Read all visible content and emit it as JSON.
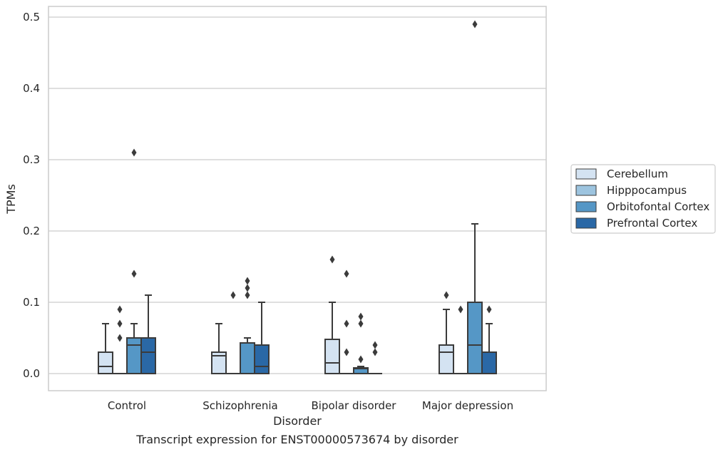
{
  "caption": "Transcript expression for ENST00000573674 by disorder",
  "chart_data": {
    "type": "box",
    "xlabel": "Disorder",
    "ylabel": "TPMs",
    "ylim": [
      -0.024,
      0.515
    ],
    "yticks": [
      0.0,
      0.1,
      0.2,
      0.3,
      0.4,
      0.5
    ],
    "ytick_labels": [
      "0.0",
      "0.1",
      "0.2",
      "0.3",
      "0.4",
      "0.5"
    ],
    "grid": "horizontal",
    "legend_position": "right",
    "categories": [
      "Control",
      "Schizophrenia",
      "Bipolar disorder",
      "Major depression"
    ],
    "series": [
      {
        "name": "Cerebellum",
        "color": "#d4e3f2",
        "boxes": [
          {
            "whislo": 0.0,
            "q1": 0.0,
            "med": 0.01,
            "q3": 0.03,
            "whishi": 0.07,
            "fliers": []
          },
          {
            "whislo": 0.0,
            "q1": 0.0,
            "med": 0.025,
            "q3": 0.03,
            "whishi": 0.07,
            "fliers": []
          },
          {
            "whislo": 0.0,
            "q1": 0.0,
            "med": 0.015,
            "q3": 0.048,
            "whishi": 0.1,
            "fliers": [
              0.16
            ]
          },
          {
            "whislo": 0.0,
            "q1": 0.0,
            "med": 0.03,
            "q3": 0.04,
            "whishi": 0.09,
            "fliers": [
              0.11
            ]
          }
        ]
      },
      {
        "name": "Hipppocampus",
        "color": "#9dc4df",
        "boxes": [
          {
            "whislo": 0.0,
            "q1": 0.0,
            "med": 0.0,
            "q3": 0.0,
            "whishi": 0.0,
            "fliers": [
              0.05,
              0.07,
              0.09
            ]
          },
          {
            "whislo": 0.0,
            "q1": 0.0,
            "med": 0.0,
            "q3": 0.0,
            "whishi": 0.0,
            "fliers": [
              0.11
            ]
          },
          {
            "whislo": 0.0,
            "q1": 0.0,
            "med": 0.0,
            "q3": 0.0,
            "whishi": 0.0,
            "fliers": [
              0.03,
              0.07,
              0.14
            ]
          },
          {
            "whislo": 0.0,
            "q1": 0.0,
            "med": 0.0,
            "q3": 0.0,
            "whishi": 0.0,
            "fliers": [
              0.09
            ]
          }
        ]
      },
      {
        "name": "Orbitofontal Cortex",
        "color": "#5597c6",
        "boxes": [
          {
            "whislo": 0.0,
            "q1": 0.0,
            "med": 0.04,
            "q3": 0.05,
            "whishi": 0.07,
            "fliers": [
              0.14,
              0.31
            ]
          },
          {
            "whislo": 0.0,
            "q1": 0.0,
            "med": 0.0,
            "q3": 0.043,
            "whishi": 0.05,
            "fliers": [
              0.11,
              0.12,
              0.13
            ]
          },
          {
            "whislo": 0.0,
            "q1": 0.0,
            "med": 0.007,
            "q3": 0.008,
            "whishi": 0.01,
            "fliers": [
              0.02,
              0.07,
              0.08
            ]
          },
          {
            "whislo": 0.0,
            "q1": 0.0,
            "med": 0.04,
            "q3": 0.1,
            "whishi": 0.21,
            "fliers": [
              0.49
            ]
          }
        ]
      },
      {
        "name": "Prefrontal Cortex",
        "color": "#2a68a6",
        "boxes": [
          {
            "whislo": 0.0,
            "q1": 0.0,
            "med": 0.03,
            "q3": 0.05,
            "whishi": 0.11,
            "fliers": []
          },
          {
            "whislo": 0.0,
            "q1": 0.0,
            "med": 0.01,
            "q3": 0.04,
            "whishi": 0.1,
            "fliers": []
          },
          {
            "whislo": 0.0,
            "q1": 0.0,
            "med": 0.0,
            "q3": 0.0,
            "whishi": 0.0,
            "fliers": [
              0.03,
              0.04
            ]
          },
          {
            "whislo": 0.0,
            "q1": 0.0,
            "med": 0.0,
            "q3": 0.03,
            "whishi": 0.07,
            "fliers": [
              0.09
            ]
          }
        ]
      }
    ]
  },
  "colors": {
    "grid": "#cccccc",
    "frame": "#cccccc",
    "box_edge": "#3b3b3b",
    "text": "#262626"
  }
}
